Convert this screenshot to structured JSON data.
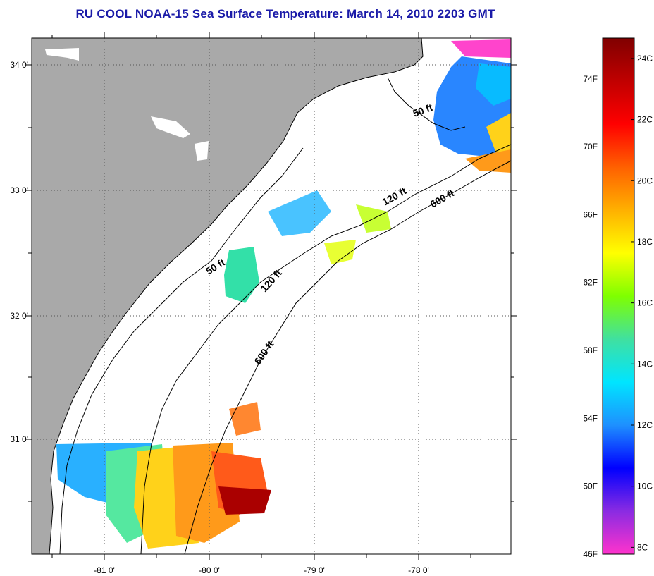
{
  "title": "RU COOL  NOAA-15  Sea Surface Temperature:  March 14, 2010 2203 GMT",
  "map": {
    "lon_ticks": [
      "-81 0'",
      "-80 0'",
      "-79 0'",
      "-78 0'"
    ],
    "lat_ticks": [
      "34 0'",
      "33 0'",
      "32 0'",
      "31 0'"
    ],
    "contour_labels": [
      "50 ft",
      "120 ft",
      "600 ft",
      "50 ft",
      "120 ft",
      "600 ft"
    ],
    "colors": {
      "land": "#a9a9a9",
      "water_bg": "#ffffff",
      "grid": "#555555"
    }
  },
  "colorbar": {
    "fahrenheit_labels": [
      "74F",
      "70F",
      "66F",
      "62F",
      "58F",
      "54F",
      "50F",
      "46F"
    ],
    "celsius_labels": [
      "24C",
      "22C",
      "20C",
      "18C",
      "16C",
      "14C",
      "12C",
      "10C",
      "8C"
    ],
    "color_stops": [
      "#ff33cc",
      "#8a2be2",
      "#0000ff",
      "#1e90ff",
      "#00e5ff",
      "#40e0a0",
      "#7fff00",
      "#ffff00",
      "#ffb000",
      "#ff6000",
      "#ff0000",
      "#c00000",
      "#800000"
    ]
  }
}
